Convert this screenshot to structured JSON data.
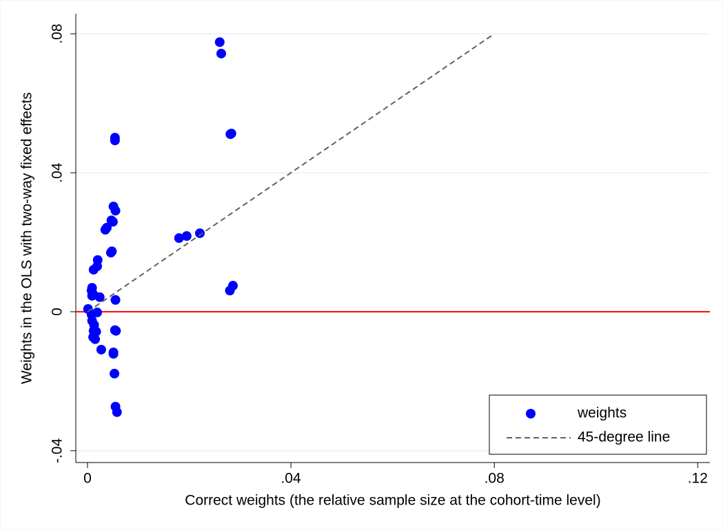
{
  "chart_data": {
    "type": "scatter",
    "xlabel": "Correct weights (the relative sample size at the cohort-time level)",
    "ylabel": "Weights in the OLS with two-way fixed effects",
    "xlim": [
      -0.0023,
      0.1224
    ],
    "ylim": [
      -0.0434,
      0.0818
    ],
    "xticks": [
      0,
      {
        "value": 0.04,
        "label": ".04"
      },
      {
        "value": 0.08,
        "label": ".08"
      },
      {
        "value": 0.12,
        "label": ".12"
      }
    ],
    "yticks": [
      {
        "value": -0.04,
        "label": "-.04"
      },
      0,
      {
        "value": 0.04,
        "label": ".04"
      },
      {
        "value": 0.08,
        "label": ".08"
      }
    ],
    "grid": true,
    "grid_color": "#e6f0f2",
    "reference_lines": [
      {
        "axis": "y",
        "value": 0,
        "color": "#ff0000"
      }
    ],
    "legend": "lower right",
    "series": [
      {
        "name": "weights",
        "type": "scatter",
        "color": "#0000ff",
        "x": [
          0.026,
          0.0263,
          0.0283,
          0.0281,
          0.0054,
          0.0054,
          0.0051,
          0.0055,
          0.0047,
          0.005,
          0.0038,
          0.0035,
          0.0048,
          0.0046,
          0.018,
          0.0195,
          0.0221,
          0.002,
          0.0019,
          0.0012,
          0.0009,
          0.0008,
          0.0011,
          0.0009,
          0.0024,
          0.0055,
          0.0286,
          0.028,
          0.0001,
          0.0008,
          0.0019,
          0.0009,
          0.0013,
          0.0012,
          0.0017,
          0.0054,
          0.0056,
          0.0011,
          0.0015,
          0.0027,
          0.0051,
          0.0051,
          0.0053,
          0.0055,
          0.0058
        ],
        "values": [
          0.0776,
          0.0743,
          0.0513,
          0.0511,
          0.0501,
          0.0493,
          0.0303,
          0.0291,
          0.0263,
          0.0259,
          0.0242,
          0.0236,
          0.0174,
          0.017,
          0.0212,
          0.0218,
          0.0226,
          0.0149,
          0.0131,
          0.0121,
          0.0069,
          0.0061,
          0.0051,
          0.0046,
          0.0042,
          0.0034,
          0.0075,
          0.0061,
          0.0008,
          -0.0008,
          -0.0002,
          -0.0026,
          -0.0038,
          -0.0055,
          -0.0057,
          -0.0053,
          -0.0055,
          -0.0073,
          -0.0079,
          -0.0109,
          -0.0117,
          -0.0121,
          -0.0178,
          -0.0273,
          -0.0289
        ]
      },
      {
        "name": "45-degree line",
        "type": "line",
        "color": "#606060",
        "dashed": true,
        "x": [
          0,
          0.08
        ],
        "values": [
          0,
          0.08
        ]
      }
    ]
  }
}
